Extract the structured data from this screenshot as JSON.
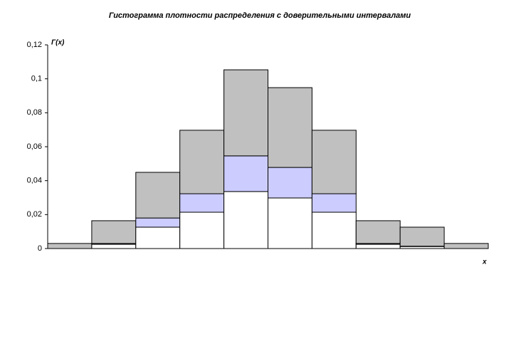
{
  "chart_data": {
    "type": "bar",
    "stacked": true,
    "title": "Гистограмма плотности распределения с доверительными интервалами",
    "y_label": "Г(x)",
    "x_label": "x",
    "categories": [
      null,
      null,
      null,
      null,
      null,
      null,
      null,
      null,
      null,
      null
    ],
    "series": [
      {
        "color": "#ffffff",
        "values": [
          0,
          0.0025,
          0.0126,
          0.0214,
          0.0336,
          0.0298,
          0.0214,
          0.0025,
          0.0012,
          0
        ]
      },
      {
        "color": "#ccccff",
        "values": [
          0,
          0.0005,
          0.0054,
          0.0109,
          0.021,
          0.018,
          0.0109,
          0.0005,
          0.0002,
          0
        ]
      },
      {
        "color": "#c0c0c0",
        "values": [
          0.003,
          0.0134,
          0.0269,
          0.0374,
          0.0507,
          0.047,
          0.0374,
          0.0134,
          0.0112,
          0.003
        ]
      }
    ],
    "ylim": [
      0,
      0.12
    ],
    "yticks": [
      0,
      {
        "value": 0.02,
        "label": "0,02"
      },
      {
        "value": 0.04,
        "label": "0,04"
      },
      {
        "value": 0.06,
        "label": "0,06"
      },
      {
        "value": 0.08,
        "label": "0,08"
      },
      {
        "value": 0.1,
        "label": "0,1"
      },
      {
        "value": 0.12,
        "label": "0,12"
      }
    ],
    "grid": false
  }
}
